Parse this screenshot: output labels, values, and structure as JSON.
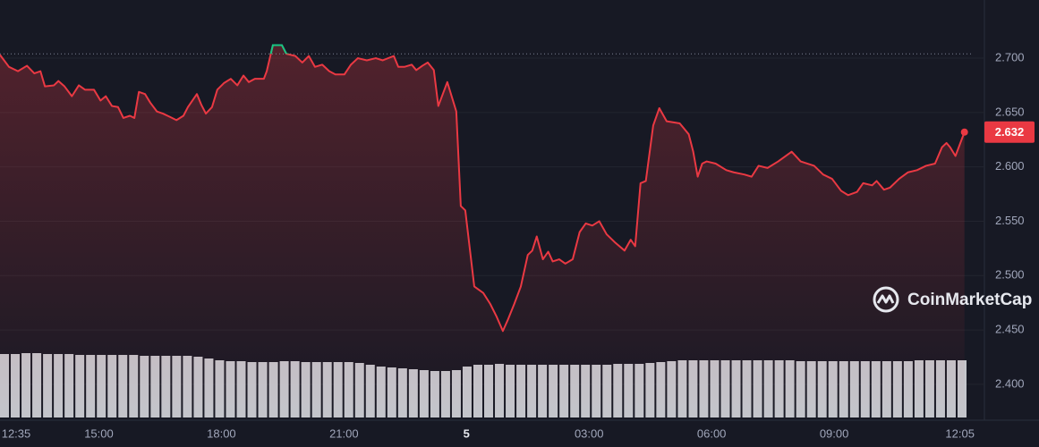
{
  "chart_data": {
    "type": "line",
    "x": [
      12.58,
      12.8,
      13.02,
      13.24,
      13.42,
      13.57,
      13.68,
      13.9,
      14.01,
      14.16,
      14.34,
      14.51,
      14.66,
      14.88,
      15.04,
      15.17,
      15.32,
      15.47,
      15.6,
      15.76,
      15.87,
      15.98,
      16.13,
      16.26,
      16.42,
      16.57,
      16.74,
      16.9,
      17.07,
      17.18,
      17.4,
      17.51,
      17.62,
      17.77,
      17.9,
      18.06,
      18.23,
      18.39,
      18.54,
      18.67,
      18.82,
      19.04,
      19.11,
      19.26,
      19.48,
      19.59,
      19.81,
      19.98,
      20.14,
      20.29,
      20.47,
      20.64,
      20.79,
      21.01,
      21.17,
      21.34,
      21.56,
      21.78,
      21.95,
      22.22,
      22.33,
      22.48,
      22.66,
      22.77,
      22.92,
      23.05,
      23.2,
      23.31,
      23.42,
      23.53,
      23.75,
      23.86,
      23.97,
      24.19,
      24.41,
      24.58,
      24.74,
      24.89,
      25.02,
      25.17,
      25.33,
      25.5,
      25.61,
      25.72,
      25.87,
      26.0,
      26.11,
      26.27,
      26.42,
      26.6,
      26.77,
      26.92,
      27.08,
      27.25,
      27.43,
      27.65,
      27.87,
      28.02,
      28.13,
      28.26,
      28.39,
      28.57,
      28.72,
      28.9,
      29.22,
      29.44,
      29.55,
      29.66,
      29.77,
      29.88,
      30.1,
      30.36,
      30.54,
      30.8,
      30.98,
      31.15,
      31.37,
      31.63,
      31.96,
      32.18,
      32.51,
      32.73,
      32.95,
      33.17,
      33.34,
      33.56,
      33.71,
      33.93,
      34.04,
      34.22,
      34.37,
      34.59,
      34.81,
      35.03,
      35.25,
      35.47,
      35.64,
      35.75,
      35.84,
      35.97,
      36.19
    ],
    "values": [
      2.703,
      2.692,
      2.688,
      2.693,
      2.686,
      2.688,
      2.674,
      2.675,
      2.679,
      2.674,
      2.665,
      2.675,
      2.671,
      2.671,
      2.661,
      2.665,
      2.656,
      2.655,
      2.645,
      2.647,
      2.645,
      2.669,
      2.667,
      2.659,
      2.651,
      2.649,
      2.646,
      2.643,
      2.647,
      2.655,
      2.667,
      2.657,
      2.649,
      2.655,
      2.671,
      2.677,
      2.681,
      2.675,
      2.684,
      2.678,
      2.681,
      2.681,
      2.688,
      2.712,
      2.712,
      2.704,
      2.702,
      2.696,
      2.702,
      2.692,
      2.694,
      2.688,
      2.685,
      2.685,
      2.694,
      2.7,
      2.698,
      2.7,
      2.698,
      2.702,
      2.692,
      2.692,
      2.694,
      2.689,
      2.693,
      2.696,
      2.689,
      2.656,
      2.667,
      2.678,
      2.651,
      2.564,
      2.56,
      2.49,
      2.484,
      2.474,
      2.462,
      2.449,
      2.46,
      2.474,
      2.49,
      2.519,
      2.523,
      2.536,
      2.515,
      2.522,
      2.513,
      2.515,
      2.511,
      2.515,
      2.54,
      2.548,
      2.546,
      2.55,
      2.538,
      2.53,
      2.523,
      2.533,
      2.527,
      2.585,
      2.587,
      2.638,
      2.654,
      2.642,
      2.64,
      2.63,
      2.614,
      2.591,
      2.603,
      2.605,
      2.603,
      2.597,
      2.595,
      2.593,
      2.591,
      2.601,
      2.599,
      2.605,
      2.614,
      2.605,
      2.601,
      2.593,
      2.589,
      2.578,
      2.574,
      2.577,
      2.585,
      2.583,
      2.587,
      2.579,
      2.581,
      2.589,
      2.595,
      2.597,
      2.601,
      2.603,
      2.618,
      2.622,
      2.618,
      2.61,
      2.632
    ],
    "color": "#ea3943",
    "up_color": "#16c784",
    "reference": 2.704,
    "xlim": [
      12.58,
      36.35
    ],
    "xticks": [
      {
        "value": 12.58,
        "label": "12:35"
      },
      {
        "value": 15,
        "label": "15:00"
      },
      {
        "value": 18,
        "label": "18:00"
      },
      {
        "value": 21,
        "label": "21:00"
      },
      {
        "value": 24,
        "label": "5"
      },
      {
        "value": 27,
        "label": "03:00"
      },
      {
        "value": 30,
        "label": "06:00"
      },
      {
        "value": 33,
        "label": "09:00"
      },
      {
        "value": 36.08,
        "label": "12:05"
      }
    ],
    "ylim": [
      2.367,
      2.7535
    ],
    "yticks": [
      {
        "value": 2.4,
        "label": "2.400"
      },
      {
        "value": 2.45,
        "label": "2.450"
      },
      {
        "value": 2.5,
        "label": "2.500"
      },
      {
        "value": 2.55,
        "label": "2.550"
      },
      {
        "value": 2.6,
        "label": "2.600"
      },
      {
        "value": 2.65,
        "label": "2.650"
      },
      {
        "value": 2.7,
        "label": "2.700"
      }
    ],
    "grid": true,
    "volume": {
      "color": "#d6d8de",
      "ylim": [
        0,
        100
      ],
      "values": [
        71,
        71,
        72,
        72,
        71,
        71,
        71,
        70,
        70,
        70,
        70,
        70,
        70,
        69,
        69,
        69,
        69,
        69,
        68,
        66,
        64,
        63,
        63,
        62,
        62,
        62,
        63,
        63,
        62,
        62,
        62,
        62,
        62,
        61,
        59,
        57,
        56,
        55,
        54,
        53,
        52,
        52,
        53,
        57,
        59,
        59,
        60,
        59,
        59,
        59,
        59,
        59,
        59,
        59,
        59,
        59,
        59,
        60,
        60,
        60,
        61,
        62,
        63,
        64,
        64,
        64,
        64,
        64,
        64,
        64,
        64,
        64,
        64,
        64,
        63,
        63,
        63,
        63,
        63,
        63,
        63,
        63,
        63,
        63,
        63,
        64,
        64,
        64,
        64,
        64
      ]
    },
    "watermark": "CoinMarketCap"
  }
}
